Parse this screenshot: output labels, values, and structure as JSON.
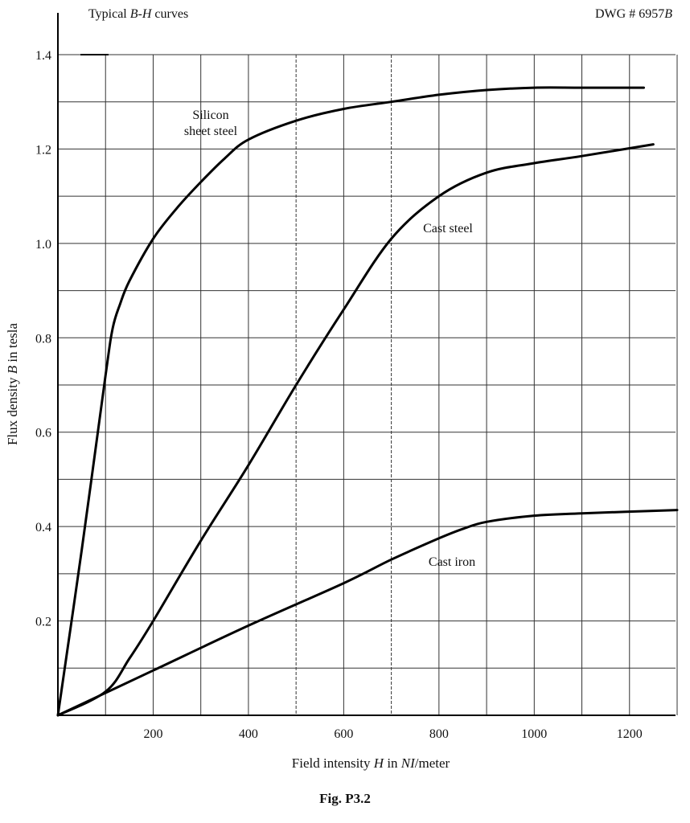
{
  "caption": "Fig. P3.2",
  "chart_data": {
    "type": "line",
    "title": "Typical B-H curves",
    "title_parts": [
      "Typical ",
      "B",
      "-",
      "H",
      " curves"
    ],
    "drawing_number": "DWG # 6957B",
    "drawing_number_parts": [
      "DWG # 6957",
      "B"
    ],
    "xlabel": "Field intensity H in NI/meter",
    "xlabel_parts": [
      "Field intensity ",
      "H",
      " in ",
      "NI",
      "/meter"
    ],
    "ylabel": "Flux density B in tesla",
    "ylabel_parts": [
      "Flux density ",
      "B",
      " in tesla"
    ],
    "xlim": [
      0,
      1300
    ],
    "ylim": [
      0,
      1.4
    ],
    "grid": true,
    "grid_x_step": 100,
    "grid_y_step": 0.1,
    "x_ticks": [
      200,
      400,
      600,
      800,
      1000,
      1200
    ],
    "y_ticks": [
      0.2,
      0.4,
      0.6,
      0.8,
      1.0,
      1.2,
      1.4
    ],
    "y_tick_labels": [
      "0.2",
      "0.4",
      "0.6",
      "0.8",
      "1.0",
      "1.2",
      "1.4"
    ],
    "series": [
      {
        "name": "Silicon sheet steel",
        "label_lines": [
          "Silicon",
          "sheet steel"
        ],
        "x": [
          0,
          50,
          100,
          115,
          130,
          150,
          200,
          250,
          300,
          350,
          400,
          500,
          600,
          700,
          800,
          900,
          1000,
          1100,
          1230
        ],
        "y": [
          0,
          0.35,
          0.72,
          0.82,
          0.87,
          0.92,
          1.01,
          1.075,
          1.13,
          1.18,
          1.22,
          1.26,
          1.285,
          1.3,
          1.315,
          1.325,
          1.33,
          1.33,
          1.33
        ]
      },
      {
        "name": "Cast steel",
        "label_lines": [
          "Cast steel"
        ],
        "x": [
          0,
          100,
          150,
          200,
          300,
          400,
          500,
          600,
          700,
          800,
          900,
          1000,
          1100,
          1250
        ],
        "y": [
          0,
          0.05,
          0.12,
          0.2,
          0.37,
          0.53,
          0.7,
          0.86,
          1.01,
          1.1,
          1.15,
          1.17,
          1.185,
          1.21
        ]
      },
      {
        "name": "Cast iron",
        "label_lines": [
          "Cast iron"
        ],
        "x": [
          0,
          200,
          400,
          600,
          700,
          800,
          850,
          900,
          1000,
          1100,
          1300
        ],
        "y": [
          0,
          0.095,
          0.19,
          0.28,
          0.33,
          0.375,
          0.395,
          0.41,
          0.423,
          0.428,
          0.435
        ]
      }
    ]
  }
}
